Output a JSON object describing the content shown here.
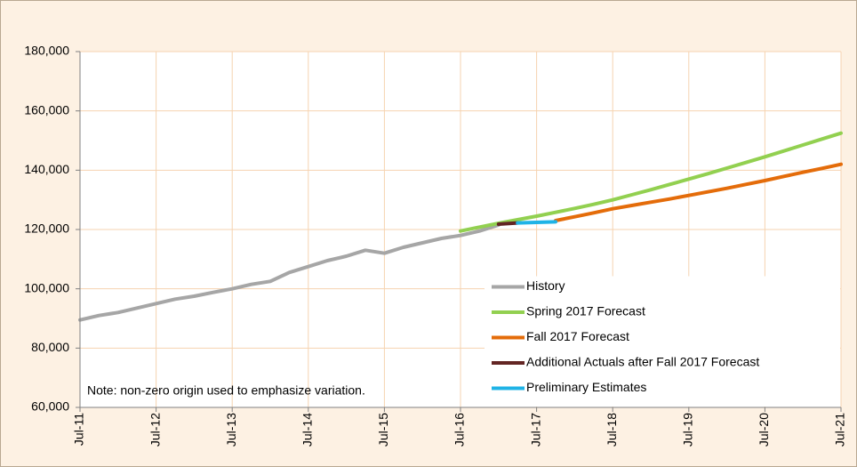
{
  "chart_data": {
    "type": "line",
    "categories": [
      "Jul-11",
      null,
      null,
      null,
      "Jul-12",
      null,
      null,
      null,
      "Jul-13",
      null,
      null,
      null,
      "Jul-14",
      null,
      null,
      null,
      "Jul-15",
      null,
      null,
      null,
      "Jul-16",
      null,
      null,
      null,
      "Jul-17",
      null,
      null,
      null,
      "Jul-18",
      null,
      null,
      null,
      "Jul-19",
      null,
      null,
      null,
      "Jul-20",
      null,
      null,
      null,
      "Jul-21"
    ],
    "series": [
      {
        "name": "History",
        "color": "#a6a6a6",
        "values": [
          89500,
          91000,
          92000,
          93500,
          95000,
          96500,
          97500,
          98800,
          100000,
          101500,
          102500,
          105500,
          107500,
          109500,
          111000,
          113000,
          112000,
          114000,
          115500,
          117000,
          118000,
          119500,
          121500,
          null,
          null,
          null,
          null,
          null,
          null,
          null,
          null,
          null,
          null,
          null,
          null,
          null,
          null,
          null,
          null,
          null,
          null
        ]
      },
      {
        "name": "Spring 2017 Forecast",
        "color": "#92d050",
        "values": [
          null,
          null,
          null,
          null,
          null,
          null,
          null,
          null,
          null,
          null,
          null,
          null,
          null,
          null,
          null,
          null,
          null,
          null,
          null,
          null,
          119500,
          120800,
          122100,
          123300,
          124500,
          125800,
          127100,
          128500,
          130000,
          131700,
          133400,
          135200,
          137000,
          138800,
          140700,
          142600,
          144500,
          146500,
          148500,
          150500,
          152500
        ]
      },
      {
        "name": "Fall 2017 Forecast",
        "color": "#e46c0a",
        "values": [
          null,
          null,
          null,
          null,
          null,
          null,
          null,
          null,
          null,
          null,
          null,
          null,
          null,
          null,
          null,
          null,
          null,
          null,
          null,
          null,
          null,
          null,
          null,
          null,
          null,
          123000,
          124300,
          125600,
          127000,
          128100,
          129200,
          130300,
          131500,
          132700,
          133900,
          135200,
          136500,
          137900,
          139300,
          140600,
          142000
        ]
      },
      {
        "name": "Additional Actuals after Fall 2017 Forecast",
        "color": "#632523",
        "values": [
          null,
          null,
          null,
          null,
          null,
          null,
          null,
          null,
          null,
          null,
          null,
          null,
          null,
          null,
          null,
          null,
          null,
          null,
          null,
          null,
          null,
          null,
          121800,
          122200,
          null,
          null,
          null,
          null,
          null,
          null,
          null,
          null,
          null,
          null,
          null,
          null,
          null,
          null,
          null,
          null,
          null
        ]
      },
      {
        "name": "Preliminary Estimates",
        "color": "#1fb3e6",
        "values": [
          null,
          null,
          null,
          null,
          null,
          null,
          null,
          null,
          null,
          null,
          null,
          null,
          null,
          null,
          null,
          null,
          null,
          null,
          null,
          null,
          null,
          null,
          null,
          122200,
          122400,
          122600,
          null,
          null,
          null,
          null,
          null,
          null,
          null,
          null,
          null,
          null,
          null,
          null,
          null,
          null,
          null
        ]
      }
    ],
    "ylim": [
      60000,
      180000
    ],
    "yticks": [
      {
        "value": 60000,
        "label": "60,000"
      },
      {
        "value": 80000,
        "label": "80,000"
      },
      {
        "value": 100000,
        "label": "100,000"
      },
      {
        "value": 120000,
        "label": "120,000"
      },
      {
        "value": 140000,
        "label": "140,000"
      },
      {
        "value": 160000,
        "label": "160,000"
      },
      {
        "value": 180000,
        "label": "180,000"
      }
    ],
    "grid": true,
    "legend": "lower right",
    "note": "Note: non-zero origin used to emphasize variation."
  }
}
